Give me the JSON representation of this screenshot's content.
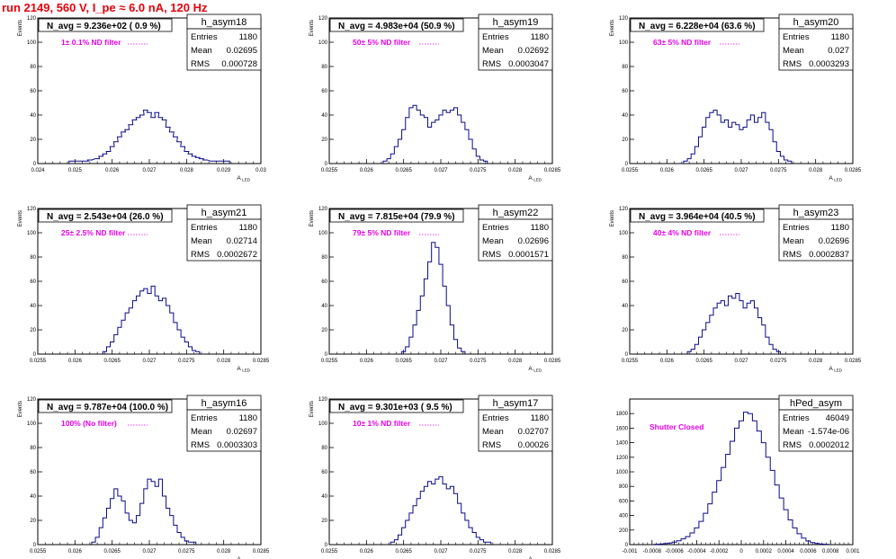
{
  "header": {
    "run_title": "run 2149,   560 V, I_pe ≈ 6.0 nA, 120 Hz"
  },
  "colors": {
    "histogram": "#0a0a8c",
    "stats_text": "#000000",
    "filter_label": "#e800e8",
    "run_title": "#e8000b",
    "axes": "#000000"
  },
  "chart_data": [
    {
      "type": "histogram",
      "name": "h_asym18",
      "navg": "N_avg = 9.236e+02 ( 0.9 %)",
      "filter": "1± 0.1% ND filter",
      "stats": {
        "entries": "1180",
        "mean": "0.02695",
        "rms": "0.000728"
      },
      "xlabel": "A_LED",
      "ylabel": "Events",
      "xlim": [
        0.024,
        0.03
      ],
      "ylim": [
        0,
        120
      ],
      "xticks": [
        "0.024",
        "0.025",
        "0.026",
        "0.027",
        "0.028",
        "0.029",
        "0.03"
      ],
      "yticks": [
        "0",
        "20",
        "40",
        "60",
        "80",
        "100",
        "120"
      ],
      "x": [
        0.0249,
        0.0251,
        0.0253,
        0.0254,
        0.0256,
        0.0257,
        0.0258,
        0.0259,
        0.026,
        0.0261,
        0.0262,
        0.0263,
        0.0264,
        0.0265,
        0.0266,
        0.0267,
        0.0268,
        0.0269,
        0.027,
        0.0271,
        0.0272,
        0.0273,
        0.0274,
        0.0275,
        0.0276,
        0.0277,
        0.0278,
        0.0279,
        0.028,
        0.0281,
        0.0282,
        0.0283,
        0.0284,
        0.0285,
        0.0287,
        0.0289,
        0.0291
      ],
      "values": [
        2,
        2,
        2,
        3,
        4,
        6,
        8,
        10,
        14,
        18,
        22,
        26,
        28,
        32,
        36,
        38,
        40,
        44,
        42,
        38,
        42,
        38,
        36,
        30,
        26,
        22,
        18,
        14,
        10,
        8,
        6,
        5,
        4,
        3,
        2,
        2,
        2
      ]
    },
    {
      "type": "histogram",
      "name": "h_asym19",
      "navg": "N_avg = 4.983e+04 (50.9 %)",
      "filter": "50± 5% ND filter",
      "stats": {
        "entries": "1180",
        "mean": "0.02692",
        "rms": "0.0003047"
      },
      "xlabel": "A_LED",
      "ylabel": "Events",
      "xlim": [
        0.0255,
        0.0285
      ],
      "ylim": [
        0,
        120
      ],
      "xticks": [
        "0.0255",
        "0.026",
        "0.0265",
        "0.027",
        "0.0275",
        "0.028",
        "0.0285"
      ],
      "yticks": [
        "0",
        "20",
        "40",
        "60",
        "80",
        "100",
        "120"
      ],
      "x": [
        0.02625,
        0.0263,
        0.02635,
        0.0264,
        0.02645,
        0.0265,
        0.02655,
        0.0266,
        0.02665,
        0.0267,
        0.02675,
        0.0268,
        0.02685,
        0.0269,
        0.02695,
        0.027,
        0.02705,
        0.0271,
        0.02715,
        0.0272,
        0.02725,
        0.0273,
        0.02735,
        0.0274,
        0.02745,
        0.0275,
        0.02755,
        0.0276
      ],
      "values": [
        2,
        4,
        8,
        14,
        20,
        28,
        38,
        46,
        48,
        44,
        40,
        38,
        30,
        34,
        36,
        40,
        44,
        42,
        44,
        46,
        40,
        34,
        28,
        20,
        12,
        6,
        3,
        2
      ]
    },
    {
      "type": "histogram",
      "name": "h_asym20",
      "navg": "N_avg = 6.228e+04 (63.6 %)",
      "filter": "63± 5% ND filter",
      "stats": {
        "entries": "1180",
        "mean": "0.027",
        "rms": "0.0003293"
      },
      "xlabel": "A_LED",
      "ylabel": "Events",
      "xlim": [
        0.0255,
        0.0285
      ],
      "ylim": [
        0,
        120
      ],
      "xticks": [
        "0.0255",
        "0.026",
        "0.0265",
        "0.027",
        "0.0275",
        "0.028",
        "0.0285"
      ],
      "yticks": [
        "0",
        "20",
        "40",
        "60",
        "80",
        "100",
        "120"
      ],
      "x": [
        0.02625,
        0.0263,
        0.02635,
        0.0264,
        0.02645,
        0.0265,
        0.02655,
        0.0266,
        0.02665,
        0.0267,
        0.02675,
        0.0268,
        0.02685,
        0.0269,
        0.02695,
        0.027,
        0.02705,
        0.0271,
        0.02715,
        0.0272,
        0.02725,
        0.0273,
        0.02735,
        0.0274,
        0.02745,
        0.0275,
        0.02755,
        0.0276,
        0.02765
      ],
      "values": [
        2,
        4,
        8,
        14,
        22,
        30,
        38,
        42,
        44,
        40,
        34,
        36,
        30,
        34,
        32,
        28,
        30,
        36,
        40,
        34,
        38,
        42,
        34,
        28,
        18,
        10,
        6,
        3,
        2
      ]
    },
    {
      "type": "histogram",
      "name": "h_asym21",
      "navg": "N_avg = 2.543e+04 (26.0 %)",
      "filter": "25± 2.5% ND filter",
      "stats": {
        "entries": "1180",
        "mean": "0.02714",
        "rms": "0.0002672"
      },
      "xlabel": "A_LED",
      "ylabel": "Events",
      "xlim": [
        0.0255,
        0.0285
      ],
      "ylim": [
        0,
        120
      ],
      "xticks": [
        "0.0255",
        "0.026",
        "0.0265",
        "0.027",
        "0.0275",
        "0.028",
        "0.0285"
      ],
      "yticks": [
        "0",
        "20",
        "40",
        "60",
        "80",
        "100",
        "120"
      ],
      "x": [
        0.0264,
        0.02645,
        0.0265,
        0.02655,
        0.0266,
        0.02665,
        0.0267,
        0.02675,
        0.0268,
        0.02685,
        0.0269,
        0.02695,
        0.027,
        0.02705,
        0.0271,
        0.02715,
        0.0272,
        0.02725,
        0.0273,
        0.02735,
        0.0274,
        0.02745,
        0.0275,
        0.02755,
        0.0276,
        0.02765
      ],
      "values": [
        2,
        6,
        10,
        16,
        22,
        28,
        34,
        38,
        44,
        48,
        52,
        54,
        50,
        56,
        48,
        44,
        46,
        40,
        34,
        26,
        20,
        14,
        10,
        6,
        3,
        2
      ]
    },
    {
      "type": "histogram",
      "name": "h_asym22",
      "navg": "N_avg = 7.815e+04 (79.9 %)",
      "filter": "79± 5% ND filter",
      "stats": {
        "entries": "1180",
        "mean": "0.02696",
        "rms": "0.0001571"
      },
      "xlabel": "A_LED",
      "ylabel": "Events",
      "xlim": [
        0.0255,
        0.0285
      ],
      "ylim": [
        0,
        120
      ],
      "xticks": [
        "0.0255",
        "0.026",
        "0.0265",
        "0.027",
        "0.0275",
        "0.028",
        "0.0285"
      ],
      "yticks": [
        "0",
        "20",
        "40",
        "60",
        "80",
        "100",
        "120"
      ],
      "x": [
        0.0265,
        0.02655,
        0.0266,
        0.02665,
        0.0267,
        0.02675,
        0.0268,
        0.02685,
        0.0269,
        0.02695,
        0.027,
        0.02705,
        0.0271,
        0.02715,
        0.0272,
        0.02725,
        0.0273
      ],
      "values": [
        2,
        6,
        14,
        24,
        36,
        48,
        62,
        76,
        92,
        88,
        74,
        56,
        40,
        24,
        12,
        5,
        2
      ]
    },
    {
      "type": "histogram",
      "name": "h_asym23",
      "navg": "N_avg = 3.964e+04 (40.5 %)",
      "filter": "40± 4% ND filter",
      "stats": {
        "entries": "1180",
        "mean": "0.02696",
        "rms": "0.0002837"
      },
      "xlabel": "A_LED",
      "ylabel": "Events",
      "xlim": [
        0.0255,
        0.0285
      ],
      "ylim": [
        0,
        120
      ],
      "xticks": [
        "0.0255",
        "0.026",
        "0.0265",
        "0.027",
        "0.0275",
        "0.028",
        "0.0285"
      ],
      "yticks": [
        "0",
        "20",
        "40",
        "60",
        "80",
        "100",
        "120"
      ],
      "x": [
        0.0263,
        0.02635,
        0.0264,
        0.02645,
        0.0265,
        0.02655,
        0.0266,
        0.02665,
        0.0267,
        0.02675,
        0.0268,
        0.02685,
        0.0269,
        0.02695,
        0.027,
        0.02705,
        0.0271,
        0.02715,
        0.0272,
        0.02725,
        0.0273,
        0.02735,
        0.0274,
        0.02745,
        0.0275
      ],
      "values": [
        2,
        4,
        8,
        14,
        20,
        26,
        32,
        38,
        42,
        44,
        40,
        48,
        46,
        50,
        44,
        38,
        42,
        44,
        38,
        30,
        24,
        14,
        8,
        4,
        2
      ]
    },
    {
      "type": "histogram",
      "name": "h_asym16",
      "navg": "N_avg = 9.787e+04 (100.0 %)",
      "filter": "100% (No filter)",
      "stats": {
        "entries": "1180",
        "mean": "0.02697",
        "rms": "0.0003303"
      },
      "xlabel": "A_LED",
      "ylabel": "Events",
      "xlim": [
        0.0255,
        0.0285
      ],
      "ylim": [
        0,
        120
      ],
      "xticks": [
        "0.0255",
        "0.026",
        "0.0265",
        "0.027",
        "0.0275",
        "0.028",
        "0.0285"
      ],
      "yticks": [
        "0",
        "20",
        "40",
        "60",
        "80",
        "100",
        "120"
      ],
      "x": [
        0.02625,
        0.0263,
        0.02635,
        0.0264,
        0.02645,
        0.0265,
        0.02655,
        0.0266,
        0.02665,
        0.0267,
        0.02675,
        0.0268,
        0.02685,
        0.0269,
        0.02695,
        0.027,
        0.02705,
        0.0271,
        0.02715,
        0.0272,
        0.02725,
        0.0273,
        0.02735,
        0.0274,
        0.02745,
        0.0275,
        0.02755,
        0.0276
      ],
      "values": [
        2,
        6,
        14,
        22,
        30,
        38,
        46,
        40,
        36,
        26,
        20,
        18,
        24,
        34,
        46,
        54,
        52,
        48,
        54,
        40,
        30,
        24,
        16,
        10,
        6,
        3,
        2,
        2
      ]
    },
    {
      "type": "histogram",
      "name": "h_asym17",
      "navg": "N_avg = 9.301e+03 ( 9.5 %)",
      "filter": "10± 1% ND filter",
      "stats": {
        "entries": "1180",
        "mean": "0.02707",
        "rms": "0.00026"
      },
      "xlabel": "A_LED",
      "ylabel": "Events",
      "xlim": [
        0.0255,
        0.0285
      ],
      "ylim": [
        0,
        120
      ],
      "xticks": [
        "0.0255",
        "0.026",
        "0.0265",
        "0.027",
        "0.0275",
        "0.028",
        "0.0285"
      ],
      "yticks": [
        "0",
        "20",
        "40",
        "60",
        "80",
        "100",
        "120"
      ],
      "x": [
        0.02635,
        0.0264,
        0.02645,
        0.0265,
        0.02655,
        0.0266,
        0.02665,
        0.0267,
        0.02675,
        0.0268,
        0.02685,
        0.0269,
        0.02695,
        0.027,
        0.02705,
        0.0271,
        0.02715,
        0.0272,
        0.02725,
        0.0273,
        0.02735,
        0.0274,
        0.02745,
        0.0275,
        0.02755,
        0.0276,
        0.02765
      ],
      "values": [
        2,
        4,
        8,
        14,
        20,
        26,
        32,
        38,
        44,
        48,
        52,
        50,
        54,
        56,
        50,
        46,
        48,
        42,
        34,
        26,
        20,
        14,
        10,
        6,
        4,
        2,
        2
      ]
    },
    {
      "type": "histogram",
      "name": "hPed_asym",
      "navg": "",
      "filter": "Shutter Closed",
      "stats": {
        "entries": "46049",
        "mean": "-1.574e-06",
        "rms": "0.0002012"
      },
      "xlabel": "",
      "ylabel": "",
      "xlim": [
        -0.001,
        0.001
      ],
      "ylim": [
        0,
        2000
      ],
      "xticks": [
        "-0.001",
        "-0.0008",
        "-0.0006",
        "-0.0004",
        "-0.0002",
        "0",
        "0.0002",
        "0.0004",
        "0.0006",
        "0.0008",
        "0.001"
      ],
      "yticks": [
        "0",
        "200",
        "400",
        "600",
        "800",
        "1000",
        "1200",
        "1400",
        "1600",
        "1800"
      ],
      "x": [
        -0.00076,
        -0.00072,
        -0.00068,
        -0.00064,
        -0.0006,
        -0.00056,
        -0.00052,
        -0.00048,
        -0.00044,
        -0.0004,
        -0.00036,
        -0.00032,
        -0.00028,
        -0.00024,
        -0.0002,
        -0.00016,
        -0.00012,
        -8e-05,
        -4e-05,
        0,
        4e-05,
        8e-05,
        0.00012,
        0.00016,
        0.0002,
        0.00024,
        0.00028,
        0.00032,
        0.00036,
        0.0004,
        0.00044,
        0.00048,
        0.00052,
        0.00056,
        0.0006,
        0.00064,
        0.00068,
        0.00072,
        0.00076
      ],
      "values": [
        4,
        8,
        14,
        22,
        34,
        52,
        78,
        110,
        160,
        230,
        320,
        430,
        560,
        720,
        880,
        1060,
        1240,
        1420,
        1600,
        1700,
        1820,
        1800,
        1700,
        1560,
        1400,
        1200,
        1020,
        820,
        640,
        480,
        340,
        230,
        150,
        90,
        50,
        28,
        16,
        8,
        4
      ]
    }
  ]
}
